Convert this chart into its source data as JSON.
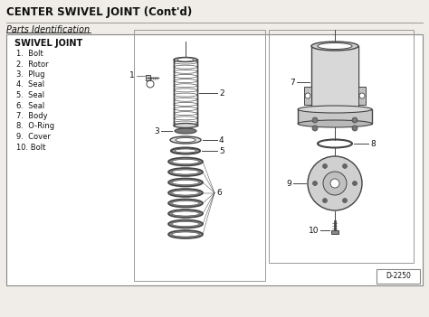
{
  "title": "CENTER SWIVEL JOINT (Cont'd)",
  "subtitle": "Parts Identification",
  "section_title": "SWIVEL JOINT",
  "parts_list": [
    "1.  Bolt",
    "2.  Rotor",
    "3.  Plug",
    "4.  Seal",
    "5.  Seal",
    "6.  Seal",
    "7.  Body",
    "8.  O-Ring",
    "9.  Cover",
    "10. Bolt"
  ],
  "diagram_ref": "D-2250",
  "bg_color": "#f0ede8",
  "box_color": "#bbbbbb",
  "line_color": "#444444",
  "text_color": "#111111",
  "title_fontsize": 8.5,
  "subtitle_fontsize": 7.0,
  "parts_fontsize": 6.0,
  "label_fontsize": 6.5
}
